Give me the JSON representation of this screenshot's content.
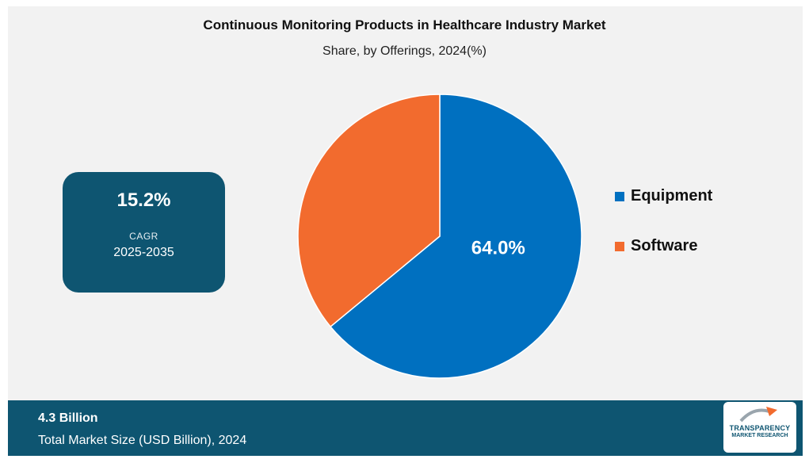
{
  "header": {
    "title": "Continuous Monitoring Products in Healthcare Industry Market",
    "subtitle": "Share, by Offerings, 2024(%)"
  },
  "cagr": {
    "value": "15.2%",
    "label": "CAGR",
    "period": "2025-2035"
  },
  "footer": {
    "value": "4.3 Billion",
    "label": "Total Market Size (USD Billion), 2024"
  },
  "logo": {
    "line1": "TRANSPARENCY",
    "line2": "MARKET RESEARCH"
  },
  "colors": {
    "equipment": "#0070c0",
    "software": "#f26b2e",
    "panel": "#f2f2f2",
    "accent": "#0e5571"
  },
  "chart_data": {
    "type": "pie",
    "title": "Continuous Monitoring Products in Healthcare Industry Market",
    "subtitle": "Share, by Offerings, 2024(%)",
    "categories": [
      "Equipment",
      "Software"
    ],
    "values": [
      64.0,
      36.0
    ],
    "data_labels": [
      "64.0%",
      ""
    ],
    "legend": "right"
  }
}
